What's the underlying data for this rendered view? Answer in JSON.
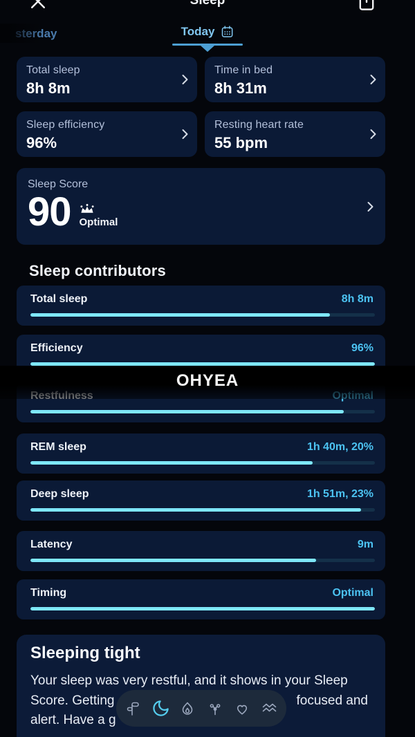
{
  "header": {
    "title": "Sleep"
  },
  "tabs": {
    "yesterday_partial": "sterday",
    "today": "Today"
  },
  "summary_cards": [
    {
      "label": "Total sleep",
      "value": "8h 8m"
    },
    {
      "label": "Time in bed",
      "value": "8h 31m"
    },
    {
      "label": "Sleep efficiency",
      "value": "96%"
    },
    {
      "label": "Resting heart rate",
      "value": "55 bpm"
    }
  ],
  "score_card": {
    "label": "Sleep Score",
    "score": "90",
    "status": "Optimal"
  },
  "contributors": {
    "heading": "Sleep contributors",
    "items": [
      {
        "label": "Total sleep",
        "value": "8h 8m",
        "percent": 87
      },
      {
        "label": "Efficiency",
        "value": "96%",
        "percent": 100
      },
      {
        "label": "Restfulness",
        "value": "Optimal",
        "percent": 91
      },
      {
        "label": "REM sleep",
        "value": "1h 40m, 20%",
        "percent": 82
      },
      {
        "label": "Deep sleep",
        "value": "1h 51m, 23%",
        "percent": 96
      },
      {
        "label": "Latency",
        "value": "9m",
        "percent": 83
      },
      {
        "label": "Timing",
        "value": "Optimal",
        "percent": 100
      }
    ]
  },
  "overlay": {
    "text": "OHYEA"
  },
  "insight": {
    "heading": "Sleeping tight",
    "line1": "Your sleep was very restful, and it shows in your Sleep",
    "line2_left": "Score. Getting",
    "line2_right": "focused and",
    "line3": "alert. Have a g"
  },
  "nav": {
    "active": "sleep",
    "icons": [
      "sprout",
      "moon",
      "flame",
      "cycle",
      "heart",
      "waves"
    ]
  },
  "colors": {
    "accent_value": "#4cc3f2",
    "bar_fill": "#7ee7f9",
    "bar_track": "#143049",
    "card_bg": "#0b1a36",
    "tab_active": "#80c6f0",
    "nav_active": "#55cdee",
    "nav_inactive": "#9aa6bc"
  }
}
